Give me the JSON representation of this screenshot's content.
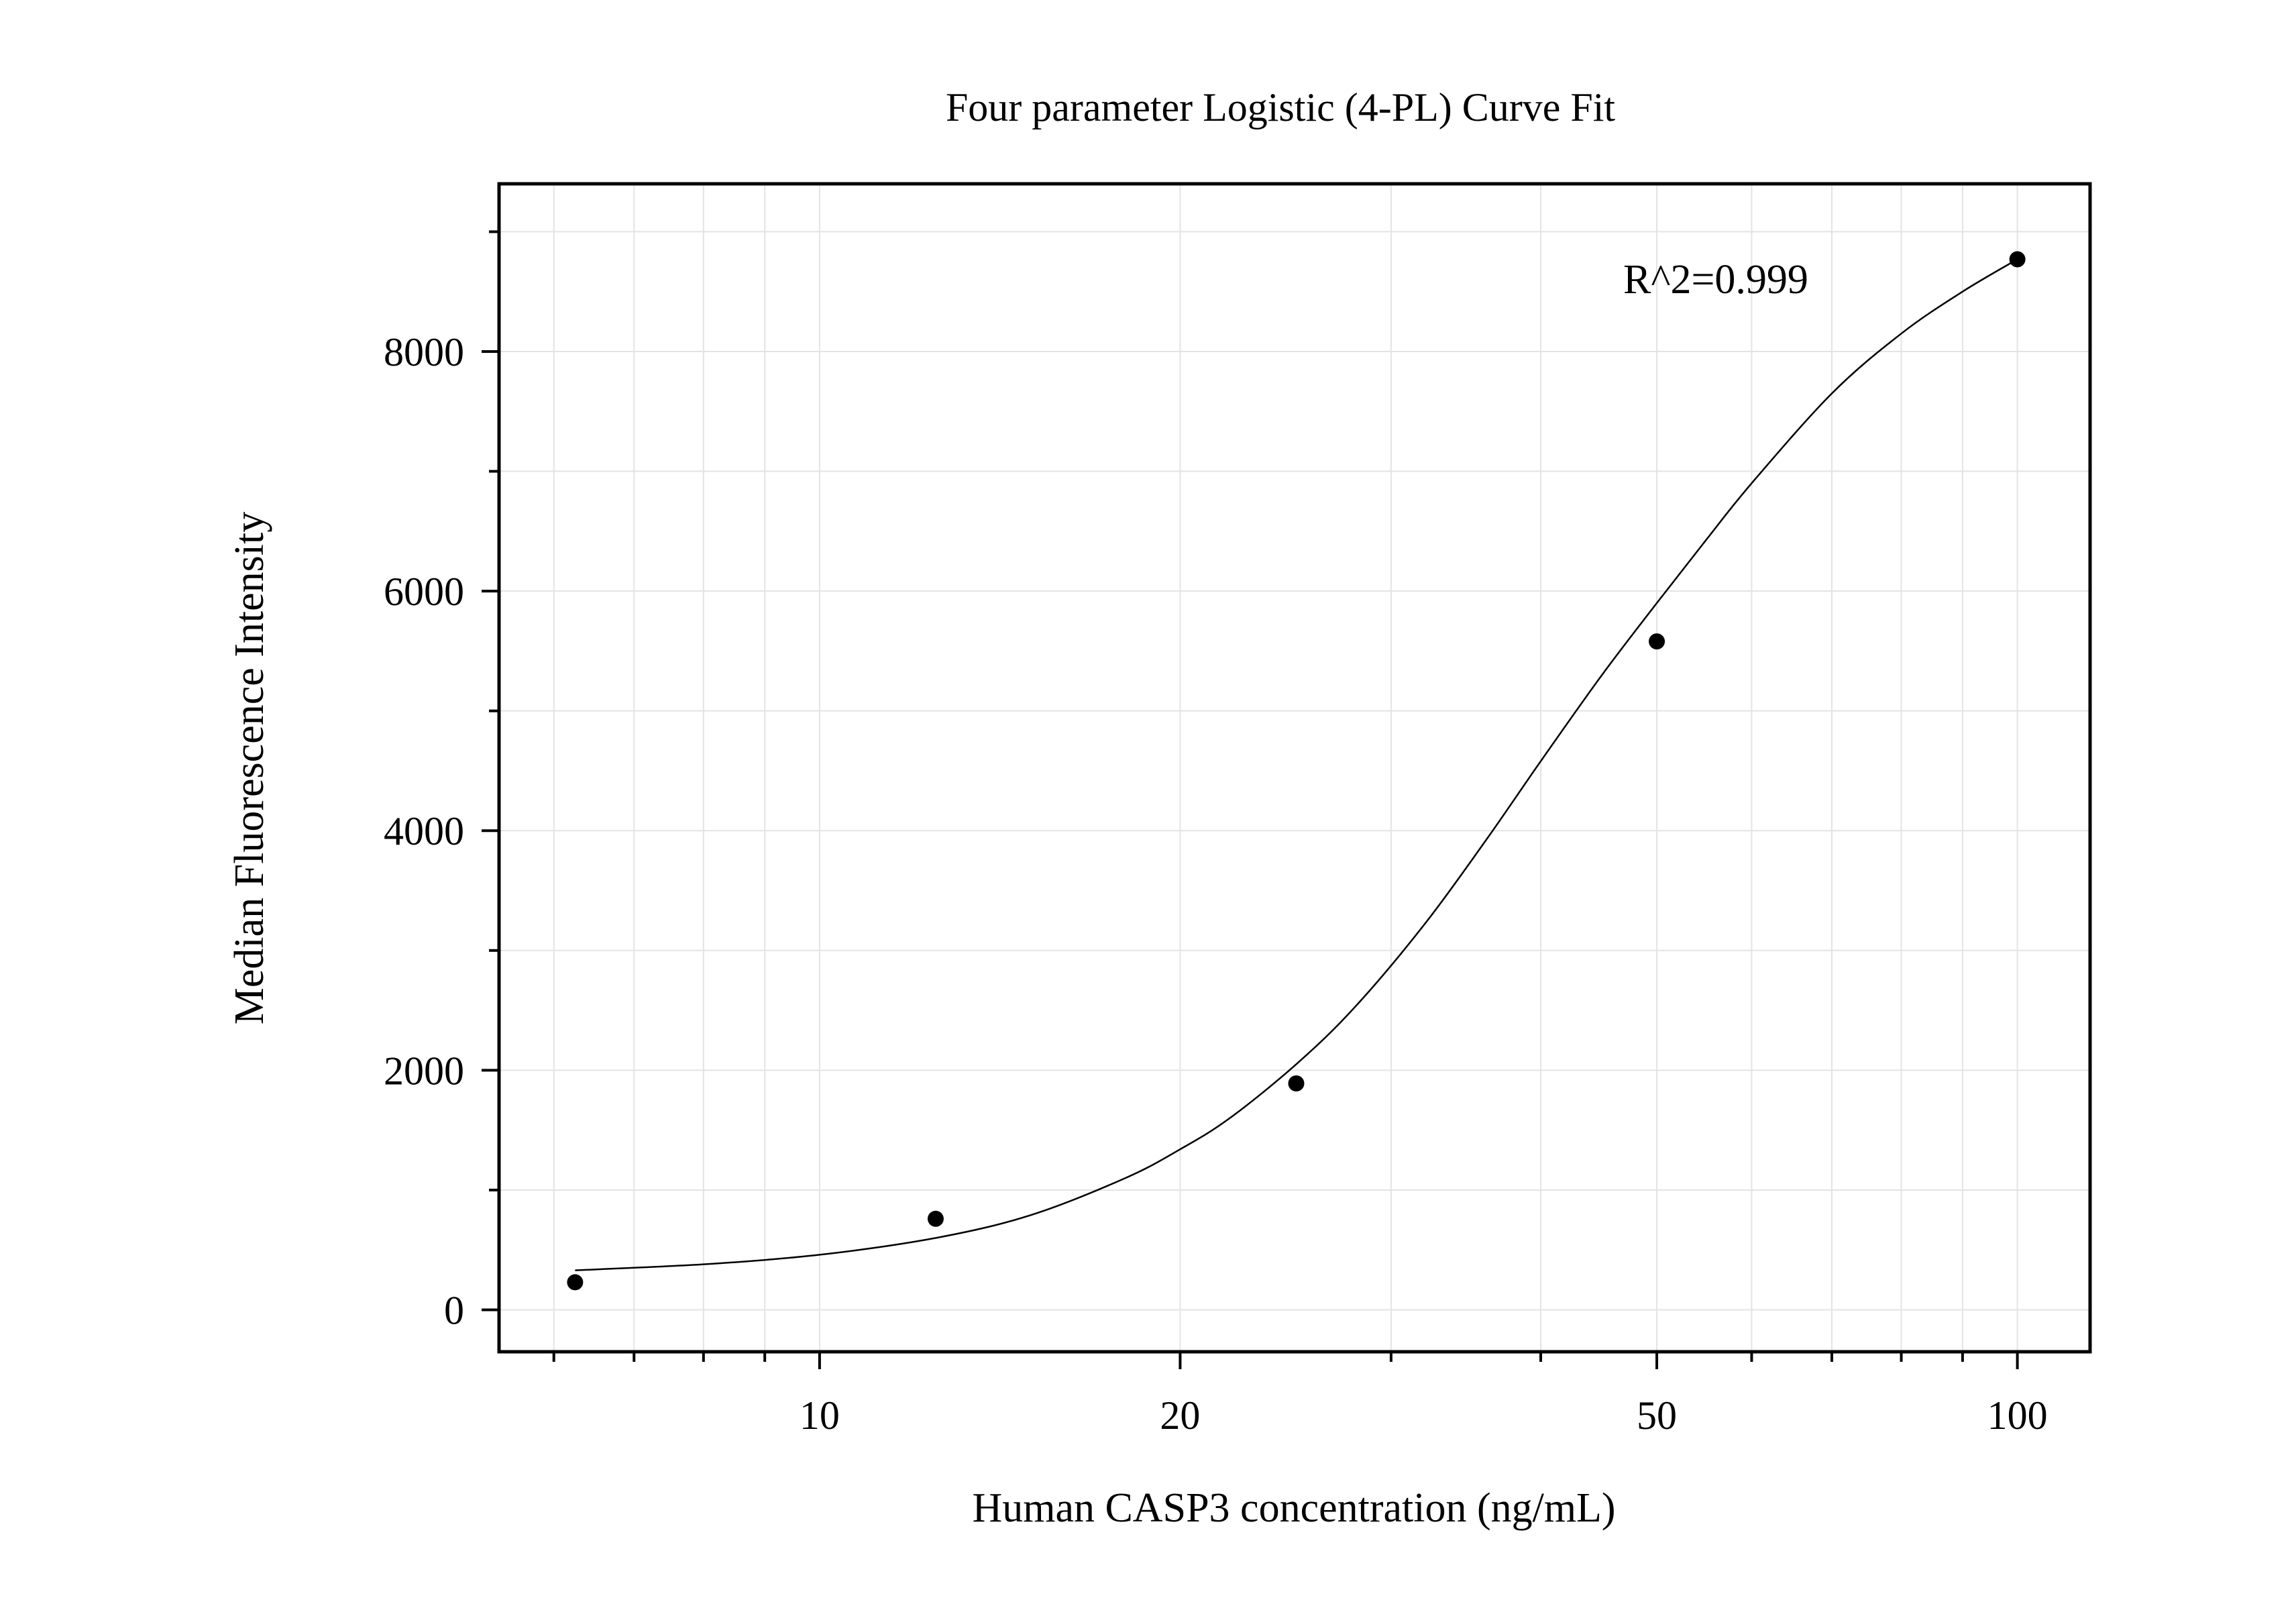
{
  "chart_data": {
    "type": "scatter",
    "title": "Four parameter Logistic (4-PL) Curve Fit",
    "xlabel": "Human CASP3 concentration (ng/mL)",
    "ylabel": "Median Fluorescence Intensity",
    "x_scale": "log",
    "xlim": [
      5.4,
      115
    ],
    "ylim": [
      -350,
      9400
    ],
    "x_ticks": [
      10,
      20,
      50,
      100
    ],
    "x_tick_labels": [
      "10",
      "20",
      "50",
      "100"
    ],
    "y_ticks": [
      0,
      2000,
      4000,
      6000,
      8000
    ],
    "y_tick_labels": [
      "0",
      "2000",
      "4000",
      "6000",
      "8000"
    ],
    "grid": true,
    "legend": "none",
    "annotation": "R^2=0.999",
    "series": [
      {
        "type": "scatter",
        "color": "#000000",
        "x": [
          6.25,
          12.5,
          25,
          50,
          100
        ],
        "y": [
          230,
          760,
          1890,
          5580,
          8770
        ]
      },
      {
        "type": "line",
        "fit": "4PL",
        "color": "#000000",
        "x": [
          6.25,
          8,
          10,
          12.5,
          15,
          18,
          20,
          22,
          25,
          28,
          32,
          36,
          40,
          45,
          50,
          55,
          60,
          70,
          80,
          90,
          100
        ],
        "y": [
          330,
          380,
          460,
          600,
          790,
          1100,
          1340,
          1600,
          2050,
          2530,
          3220,
          3920,
          4580,
          5300,
          5900,
          6430,
          6900,
          7650,
          8150,
          8500,
          8770
        ]
      }
    ]
  }
}
